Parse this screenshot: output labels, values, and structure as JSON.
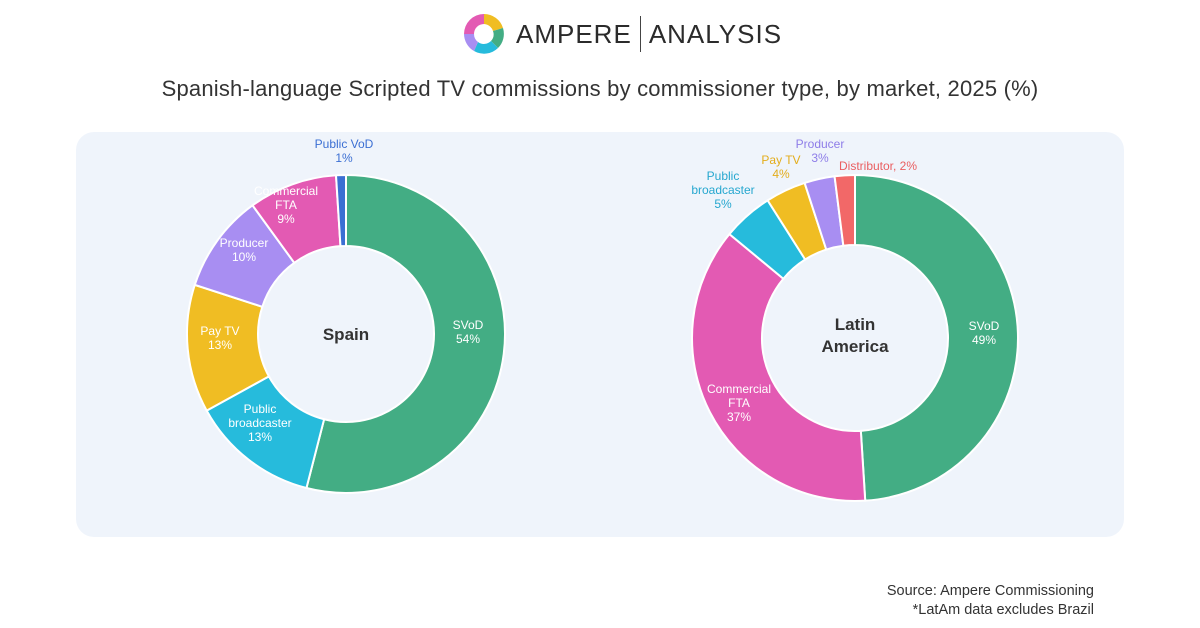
{
  "brand": {
    "name_left": "AMPERE",
    "name_right": "ANALYSIS"
  },
  "title": "Spanish-language Scripted TV commissions by commissioner type, by market, 2025 (%)",
  "source": {
    "line1": "Source: Ampere Commissioning",
    "line2": "*LatAm data excludes Brazil"
  },
  "colors": {
    "SVoD": "#43ad84",
    "Public broadcaster": "#26bbdc",
    "Pay TV": "#f0bd23",
    "Producer": "#a88ef2",
    "Commercial FTA": "#e35ab3",
    "Public VoD": "#3b6fd3",
    "Distributor": "#f26868"
  },
  "chart_data": [
    {
      "type": "pie",
      "variant": "donut",
      "center_label": "Spain",
      "slices": [
        {
          "name": "SVoD",
          "value": 54,
          "lines": [
            "SVoD",
            "54%"
          ],
          "label_position": "inside"
        },
        {
          "name": "Public broadcaster",
          "value": 13,
          "lines": [
            "Public",
            "broadcaster",
            "13%"
          ],
          "label_position": "inside"
        },
        {
          "name": "Pay TV",
          "value": 13,
          "lines": [
            "Pay TV",
            "13%"
          ],
          "label_position": "inside"
        },
        {
          "name": "Producer",
          "value": 10,
          "lines": [
            "Producer",
            "10%"
          ],
          "label_position": "inside"
        },
        {
          "name": "Commercial FTA",
          "value": 9,
          "lines": [
            "Commercial",
            "FTA",
            "9%"
          ],
          "label_position": "inside"
        },
        {
          "name": "Public VoD",
          "value": 1,
          "lines": [
            "Public VoD",
            "1%"
          ],
          "label_position": "outside"
        }
      ]
    },
    {
      "type": "pie",
      "variant": "donut",
      "center_label": "Latin America",
      "slices": [
        {
          "name": "SVoD",
          "value": 49,
          "lines": [
            "SVoD",
            "49%"
          ],
          "label_position": "inside"
        },
        {
          "name": "Commercial FTA",
          "value": 37,
          "lines": [
            "Commercial",
            "FTA",
            "37%"
          ],
          "label_position": "inside"
        },
        {
          "name": "Public broadcaster",
          "value": 5,
          "lines": [
            "Public",
            "broadcaster",
            "5%"
          ],
          "label_position": "outside"
        },
        {
          "name": "Pay TV",
          "value": 4,
          "lines": [
            "Pay TV",
            "4%"
          ],
          "label_position": "outside"
        },
        {
          "name": "Producer",
          "value": 3,
          "lines": [
            "Producer",
            "3%"
          ],
          "label_position": "outside"
        },
        {
          "name": "Distributor",
          "value": 2,
          "lines": [
            "Distributor, 2%"
          ],
          "label_position": "outside"
        }
      ]
    }
  ]
}
